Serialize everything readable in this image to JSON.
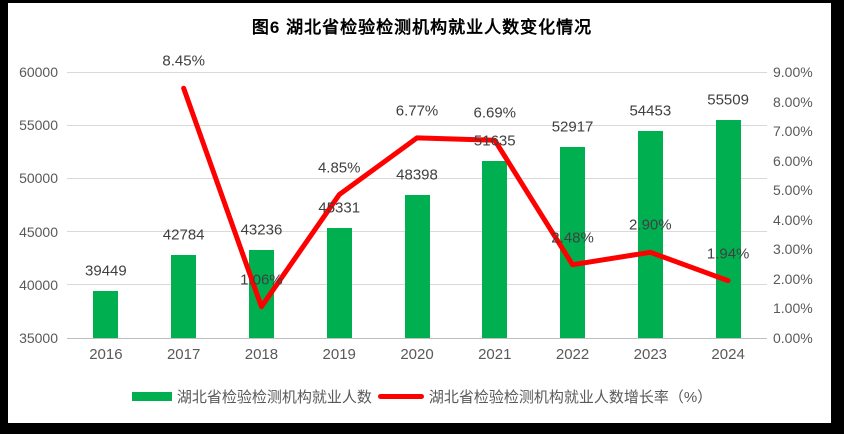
{
  "chart_data": {
    "type": "bar+line combo",
    "title": "图6  湖北省检验检测机构就业人数变化情况",
    "categories": [
      "2016",
      "2017",
      "2018",
      "2019",
      "2020",
      "2021",
      "2022",
      "2023",
      "2024"
    ],
    "series": [
      {
        "name": "湖北省检验检测机构就业人数",
        "type": "bar",
        "axis": "left",
        "color": "#00B050",
        "values": [
          39449,
          42784,
          43236,
          45331,
          48398,
          51635,
          52917,
          54453,
          55509
        ],
        "labels": [
          "39449",
          "42784",
          "43236",
          "45331",
          "48398",
          "51635",
          "52917",
          "54453",
          "55509"
        ]
      },
      {
        "name": "湖北省检验检测机构就业人数增长率（%）",
        "type": "line",
        "axis": "right",
        "color": "#FF0000",
        "values": [
          null,
          8.45,
          1.06,
          4.85,
          6.77,
          6.69,
          2.48,
          2.9,
          1.94
        ],
        "labels": [
          null,
          "8.45%",
          "1.06%",
          "4.85%",
          "6.77%",
          "6.69%",
          "2.48%",
          "2.90%",
          "1.94%"
        ]
      }
    ],
    "left_axis": {
      "min": 35000,
      "max": 60000,
      "step": 5000,
      "tick_labels": [
        "35000",
        "40000",
        "45000",
        "50000",
        "55000",
        "60000"
      ]
    },
    "right_axis": {
      "min": 0,
      "max": 9,
      "step": 1,
      "tick_labels": [
        "0.00%",
        "1.00%",
        "2.00%",
        "3.00%",
        "4.00%",
        "5.00%",
        "6.00%",
        "7.00%",
        "8.00%",
        "9.00%"
      ]
    },
    "grid": true,
    "legend_position": "bottom",
    "colors": {
      "bar": "#00B050",
      "line": "#FF0000",
      "grid": "#D9D9D9",
      "axis_text": "#595959",
      "label_text": "#404040",
      "title_text": "#000000",
      "frame": "#000000",
      "background": "#FFFFFF"
    }
  }
}
